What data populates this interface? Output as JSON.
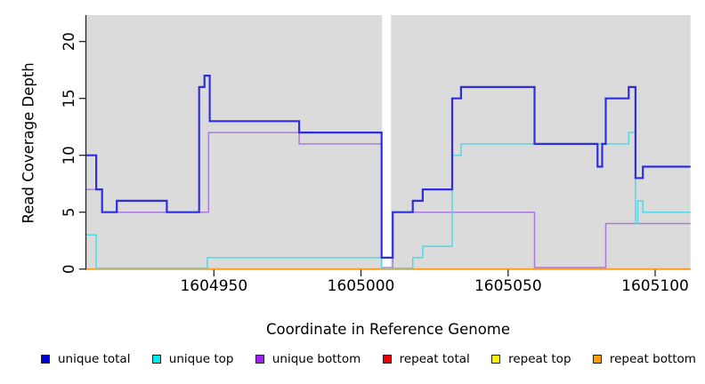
{
  "chart_data": {
    "type": "line",
    "subtype": "step",
    "title": "",
    "xlabel": "Coordinate in Reference Genome",
    "ylabel": "Read Coverage Depth",
    "x_domain": [
      1604906.5,
      1605112
    ],
    "ylim": [
      0,
      22.3
    ],
    "x_ticks": [
      1604950,
      1605000,
      1605050,
      1605100
    ],
    "y_ticks": [
      0,
      5,
      10,
      15,
      20
    ],
    "grid": false,
    "plot_bg": "#DBDBDB",
    "gap_region": {
      "from": 1605007.2,
      "to": 1605010.2,
      "color": "#FFFFFF"
    },
    "legend_position": "bottom",
    "series": [
      {
        "name": "repeat total",
        "line_color": "#E02020",
        "width": 1.4,
        "steps": [
          [
            1604906.5,
            0
          ]
        ]
      },
      {
        "name": "repeat top",
        "line_color": "#FFE400",
        "width": 1.4,
        "steps": [
          [
            1604906.5,
            0
          ]
        ]
      },
      {
        "name": "repeat bottom",
        "line_color": "#FF9D20",
        "width": 2,
        "steps": [
          [
            1604906.5,
            0
          ]
        ]
      },
      {
        "name": "unique bottom",
        "line_color": "#A97BDC",
        "width": 1.5,
        "steps": [
          [
            1604906.5,
            7
          ],
          [
            1604912,
            5
          ],
          [
            1604948.2,
            12
          ],
          [
            1604979,
            11
          ],
          [
            1605007,
            0
          ],
          [
            1605010.8,
            5
          ],
          [
            1605059,
            0
          ],
          [
            1605083.2,
            4
          ]
        ]
      },
      {
        "name": "unique top",
        "line_color": "#52D8E4",
        "width": 1.5,
        "steps": [
          [
            1604906.5,
            3
          ],
          [
            1604910,
            0
          ],
          [
            1604947.8,
            1
          ],
          [
            1605007,
            0
          ],
          [
            1605017.6,
            1
          ],
          [
            1605021,
            2
          ],
          [
            1605031,
            10
          ],
          [
            1605034,
            11
          ],
          [
            1605091,
            12
          ],
          [
            1605093.3,
            4
          ],
          [
            1605094.1,
            6
          ],
          [
            1605095.8,
            5
          ]
        ]
      },
      {
        "name": "unique total",
        "line_color": "#2E2EDE",
        "width": 2.2,
        "steps": [
          [
            1604906.5,
            10
          ],
          [
            1604910,
            7
          ],
          [
            1604912,
            5
          ],
          [
            1604917,
            6
          ],
          [
            1604934,
            5
          ],
          [
            1604945,
            16
          ],
          [
            1604946.8,
            17
          ],
          [
            1604948.6,
            13
          ],
          [
            1604979,
            12
          ],
          [
            1605007,
            1
          ],
          [
            1605010.8,
            5
          ],
          [
            1605017.6,
            6
          ],
          [
            1605021,
            7
          ],
          [
            1605031,
            15
          ],
          [
            1605034,
            16
          ],
          [
            1605059,
            11
          ],
          [
            1605080.4,
            9
          ],
          [
            1605082,
            11
          ],
          [
            1605083.2,
            15
          ],
          [
            1605091,
            16
          ],
          [
            1605093.3,
            8
          ],
          [
            1605095.8,
            9
          ]
        ]
      }
    ],
    "legend": [
      {
        "label": "unique total",
        "color": "#0000DD"
      },
      {
        "label": "unique top",
        "color": "#00E8E8"
      },
      {
        "label": "unique bottom",
        "color": "#A020F0"
      },
      {
        "label": "repeat total",
        "color": "#EE0000"
      },
      {
        "label": "repeat top",
        "color": "#FFF200"
      },
      {
        "label": "repeat bottom",
        "color": "#FF9D00"
      }
    ]
  }
}
